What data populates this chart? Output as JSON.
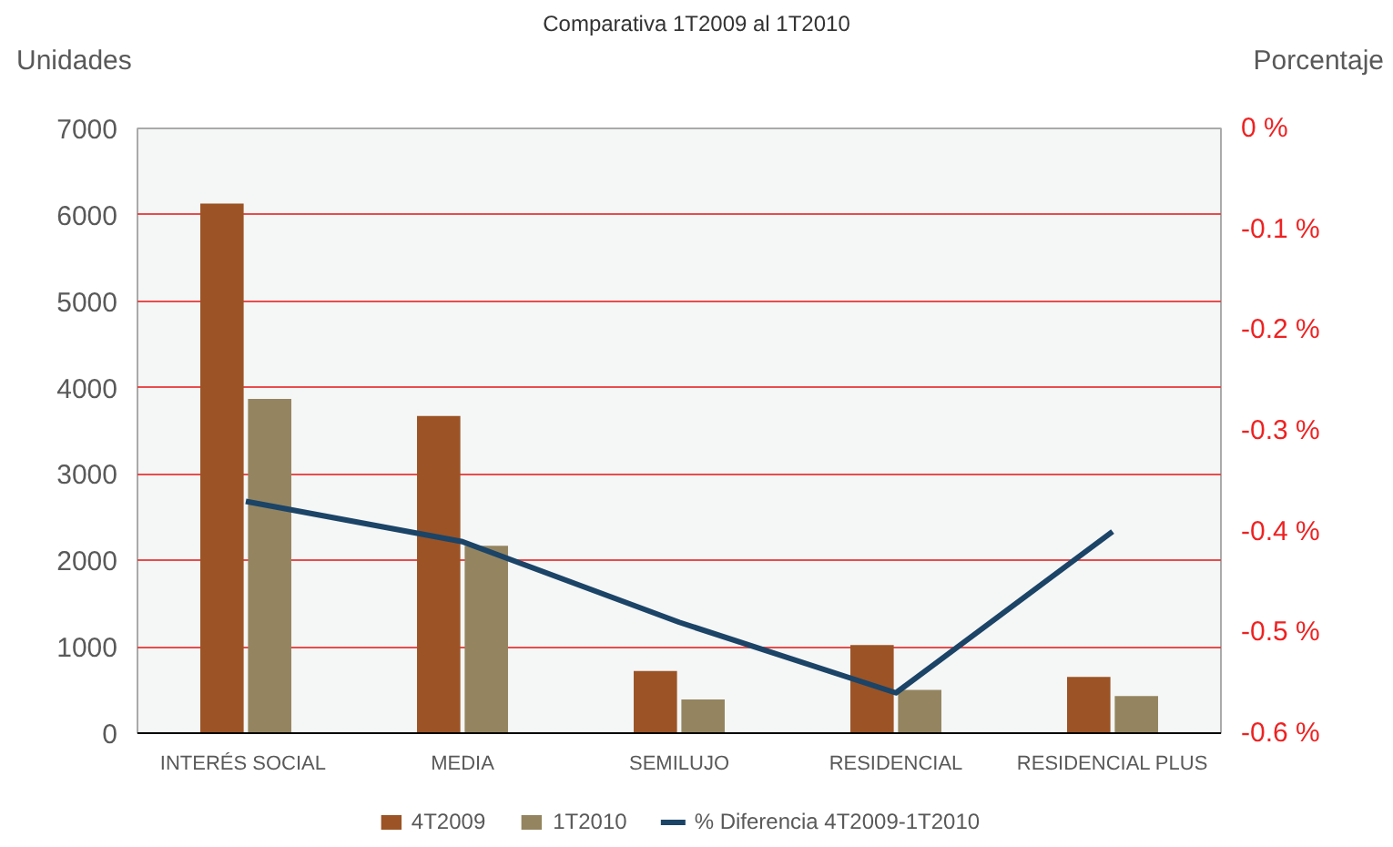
{
  "chart_data": {
    "type": "bar",
    "title": "Comparativa 1T2009 al 1T2010",
    "ylabel": "Unidades",
    "y2label": "Porcentaje",
    "categories": [
      "INTERÉS  SOCIAL",
      "MEDIA",
      "SEMILUJO",
      "RESIDENCIAL",
      "RESIDENCIAL PLUS"
    ],
    "series": [
      {
        "name": "4T2009",
        "color": "#9c5325",
        "values": [
          6130,
          3670,
          720,
          1020,
          650
        ]
      },
      {
        "name": "1T2010",
        "color": "#948560",
        "values": [
          3870,
          2170,
          390,
          500,
          430
        ]
      },
      {
        "name": "% Diferencia 4T2009-1T2010",
        "type": "line",
        "axis": "y2",
        "color": "#1b4467",
        "values": [
          -0.37,
          -0.41,
          -0.49,
          -0.56,
          -0.4
        ]
      }
    ],
    "ylim": [
      0,
      7000
    ],
    "yticks": [
      0,
      1000,
      2000,
      3000,
      4000,
      5000,
      6000,
      7000
    ],
    "y2lim": [
      -0.6,
      0
    ],
    "y2ticks": [
      {
        "value": 0,
        "label": "0 %"
      },
      {
        "value": -0.1,
        "label": "-0.1 %"
      },
      {
        "value": -0.2,
        "label": "-0.2 %"
      },
      {
        "value": -0.3,
        "label": "-0.3 %"
      },
      {
        "value": -0.4,
        "label": "-0.4 %"
      },
      {
        "value": -0.5,
        "label": "-0.5 %"
      },
      {
        "value": -0.6,
        "label": "-0.6 %"
      }
    ],
    "grid": "y",
    "legend": "bottom"
  }
}
